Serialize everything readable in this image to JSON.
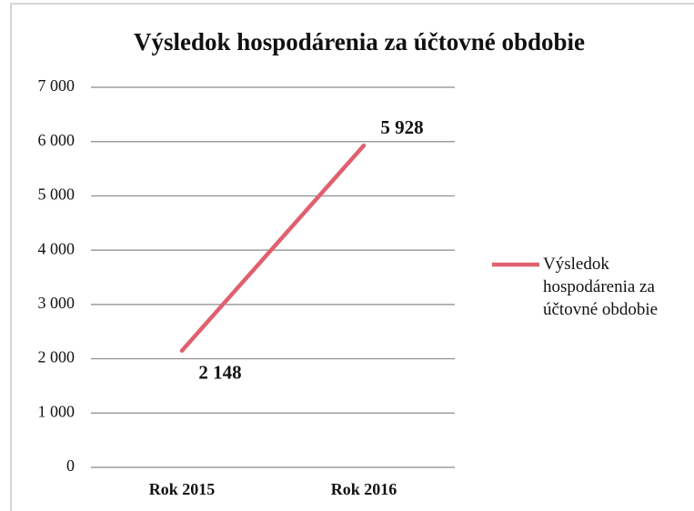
{
  "chart_data": {
    "type": "line",
    "title": "Výsledok hospodárenia za účtovné obdobie",
    "categories": [
      "Rok 2015",
      "Rok 2016"
    ],
    "series": [
      {
        "name": "Výsledok hospodárenia za účtovné obdobie",
        "color": "#e0606e",
        "values": [
          2148,
          5928
        ],
        "value_labels": [
          "2 148",
          "5 928"
        ]
      }
    ],
    "ylim": [
      0,
      7000
    ],
    "yticks": [
      0,
      {
        "value": 1000,
        "label": "1 000"
      },
      {
        "value": 2000,
        "label": "2 000"
      },
      {
        "value": 3000,
        "label": "3 000"
      },
      {
        "value": 4000,
        "label": "4 000"
      },
      {
        "value": 5000,
        "label": "5 000"
      },
      {
        "value": 6000,
        "label": "6 000"
      },
      {
        "value": 7000,
        "label": "7 000"
      }
    ],
    "grid": true,
    "legend": "right"
  }
}
